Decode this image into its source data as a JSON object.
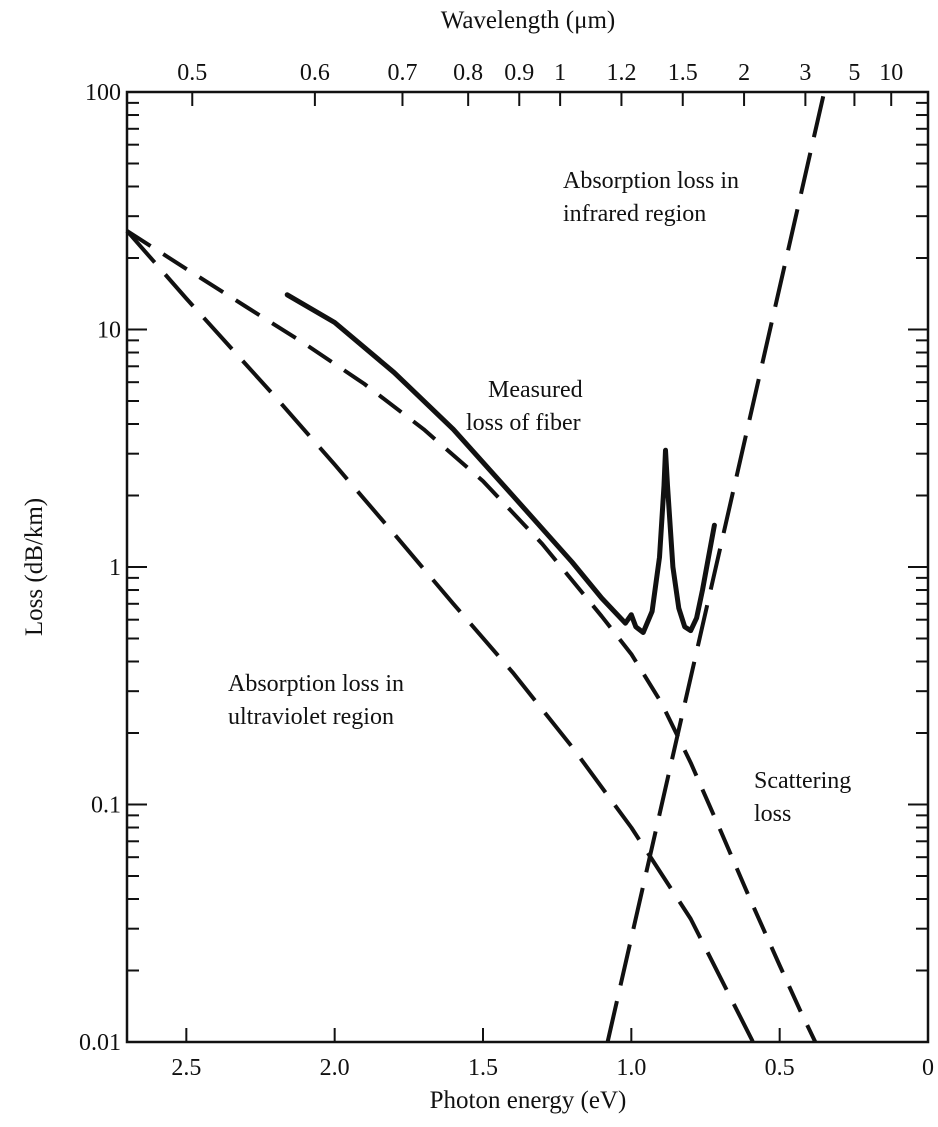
{
  "chart_data": {
    "type": "line",
    "xlabel": "Photon energy (eV)",
    "ylabel": "Loss (dB/km)",
    "x2label": "Wavelength (μm)",
    "xlim": [
      2.7,
      0
    ],
    "ylim": [
      0.01,
      100
    ],
    "yscale": "log",
    "grid": false,
    "x_ticks": [
      {
        "value": 2.5,
        "label": "2.5"
      },
      {
        "value": 2.0,
        "label": "2.0"
      },
      {
        "value": 1.5,
        "label": "1.5"
      },
      {
        "value": 1.0,
        "label": "1.0"
      },
      {
        "value": 0.5,
        "label": "0.5"
      },
      {
        "value": 0,
        "label": "0"
      }
    ],
    "y_ticks": [
      {
        "value": 100,
        "label": "100"
      },
      {
        "value": 10,
        "label": "10"
      },
      {
        "value": 1,
        "label": "1"
      },
      {
        "value": 0.1,
        "label": "0.1"
      },
      {
        "value": 0.01,
        "label": "0.01"
      }
    ],
    "wavelength_ticks": [
      {
        "value": 0.5,
        "label": "0.5"
      },
      {
        "value": 0.6,
        "label": "0.6"
      },
      {
        "value": 0.7,
        "label": "0.7"
      },
      {
        "value": 0.8,
        "label": "0.8"
      },
      {
        "value": 0.9,
        "label": "0.9"
      },
      {
        "value": 1,
        "label": "1"
      },
      {
        "value": 1.2,
        "label": "1.2"
      },
      {
        "value": 1.5,
        "label": "1.5"
      },
      {
        "value": 2,
        "label": "2"
      },
      {
        "value": 3,
        "label": "3"
      },
      {
        "value": 5,
        "label": "5"
      },
      {
        "value": 10,
        "label": "10"
      }
    ],
    "series": [
      {
        "label": "Measured loss of fiber",
        "style": "solid",
        "points": [
          [
            2.16,
            14
          ],
          [
            2.0,
            10.7
          ],
          [
            1.8,
            6.6
          ],
          [
            1.6,
            3.8
          ],
          [
            1.4,
            2.0
          ],
          [
            1.2,
            1.05
          ],
          [
            1.1,
            0.74
          ],
          [
            1.02,
            0.58
          ],
          [
            1.0,
            0.63
          ],
          [
            0.985,
            0.56
          ],
          [
            0.96,
            0.53
          ],
          [
            0.93,
            0.65
          ],
          [
            0.905,
            1.1
          ],
          [
            0.89,
            2.2
          ],
          [
            0.885,
            3.1
          ],
          [
            0.878,
            2.2
          ],
          [
            0.86,
            1.0
          ],
          [
            0.84,
            0.67
          ],
          [
            0.82,
            0.56
          ],
          [
            0.8,
            0.54
          ],
          [
            0.78,
            0.61
          ],
          [
            0.76,
            0.8
          ],
          [
            0.74,
            1.1
          ],
          [
            0.72,
            1.5
          ]
        ]
      },
      {
        "label": "Absorption loss in ultraviolet region",
        "style": "dashed",
        "points": [
          [
            2.7,
            26
          ],
          [
            2.5,
            13.5
          ],
          [
            2.2,
            5.2
          ],
          [
            2.0,
            2.7
          ],
          [
            1.8,
            1.38
          ],
          [
            1.6,
            0.7
          ],
          [
            1.4,
            0.36
          ],
          [
            1.2,
            0.175
          ],
          [
            1.0,
            0.08
          ],
          [
            0.8,
            0.033
          ],
          [
            0.59,
            0.01
          ]
        ]
      },
      {
        "label": "Scattering loss",
        "style": "dashed",
        "points": [
          [
            2.7,
            26
          ],
          [
            2.5,
            18
          ],
          [
            2.3,
            12.5
          ],
          [
            2.1,
            8.7
          ],
          [
            1.9,
            5.9
          ],
          [
            1.7,
            3.8
          ],
          [
            1.5,
            2.3
          ],
          [
            1.3,
            1.25
          ],
          [
            1.1,
            0.62
          ],
          [
            1.0,
            0.43
          ],
          [
            0.9,
            0.27
          ],
          [
            0.8,
            0.15
          ],
          [
            0.7,
            0.078
          ],
          [
            0.6,
            0.04
          ],
          [
            0.5,
            0.021
          ],
          [
            0.43,
            0.0135
          ],
          [
            0.38,
            0.01
          ]
        ]
      },
      {
        "label": "Absorption loss in infrared region",
        "style": "dashed",
        "points": [
          [
            1.08,
            0.01
          ],
          [
            0.35,
            100
          ]
        ]
      }
    ],
    "annotations": [
      {
        "text": "Absorption loss in",
        "line2": "infrared region"
      },
      {
        "text": "Measured",
        "line2": "loss of fiber"
      },
      {
        "text": "Absorption loss in",
        "line2": "ultraviolet region"
      },
      {
        "text": "Scattering",
        "line2": "loss"
      }
    ]
  }
}
